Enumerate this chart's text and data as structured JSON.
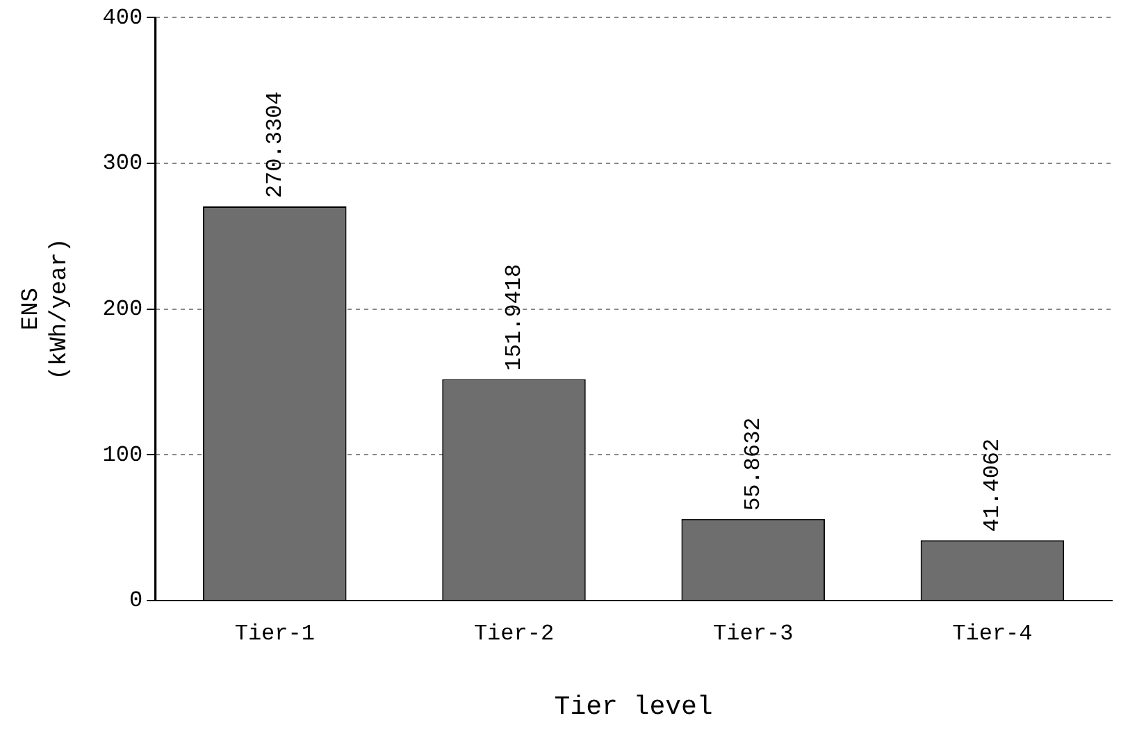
{
  "chart_data": {
    "type": "bar",
    "xlabel": "Tier level",
    "ylabel": "ENS\n(kWh/year)",
    "categories": [
      "Tier-1",
      "Tier-2",
      "Tier-3",
      "Tier-4"
    ],
    "values": [
      270.3304,
      151.9418,
      55.8632,
      41.4062
    ],
    "color": "#6e6e6e",
    "ylim": [
      0,
      400
    ],
    "yticks": [
      0,
      100,
      200,
      300,
      400
    ],
    "grid": "y",
    "data_labels": true
  }
}
